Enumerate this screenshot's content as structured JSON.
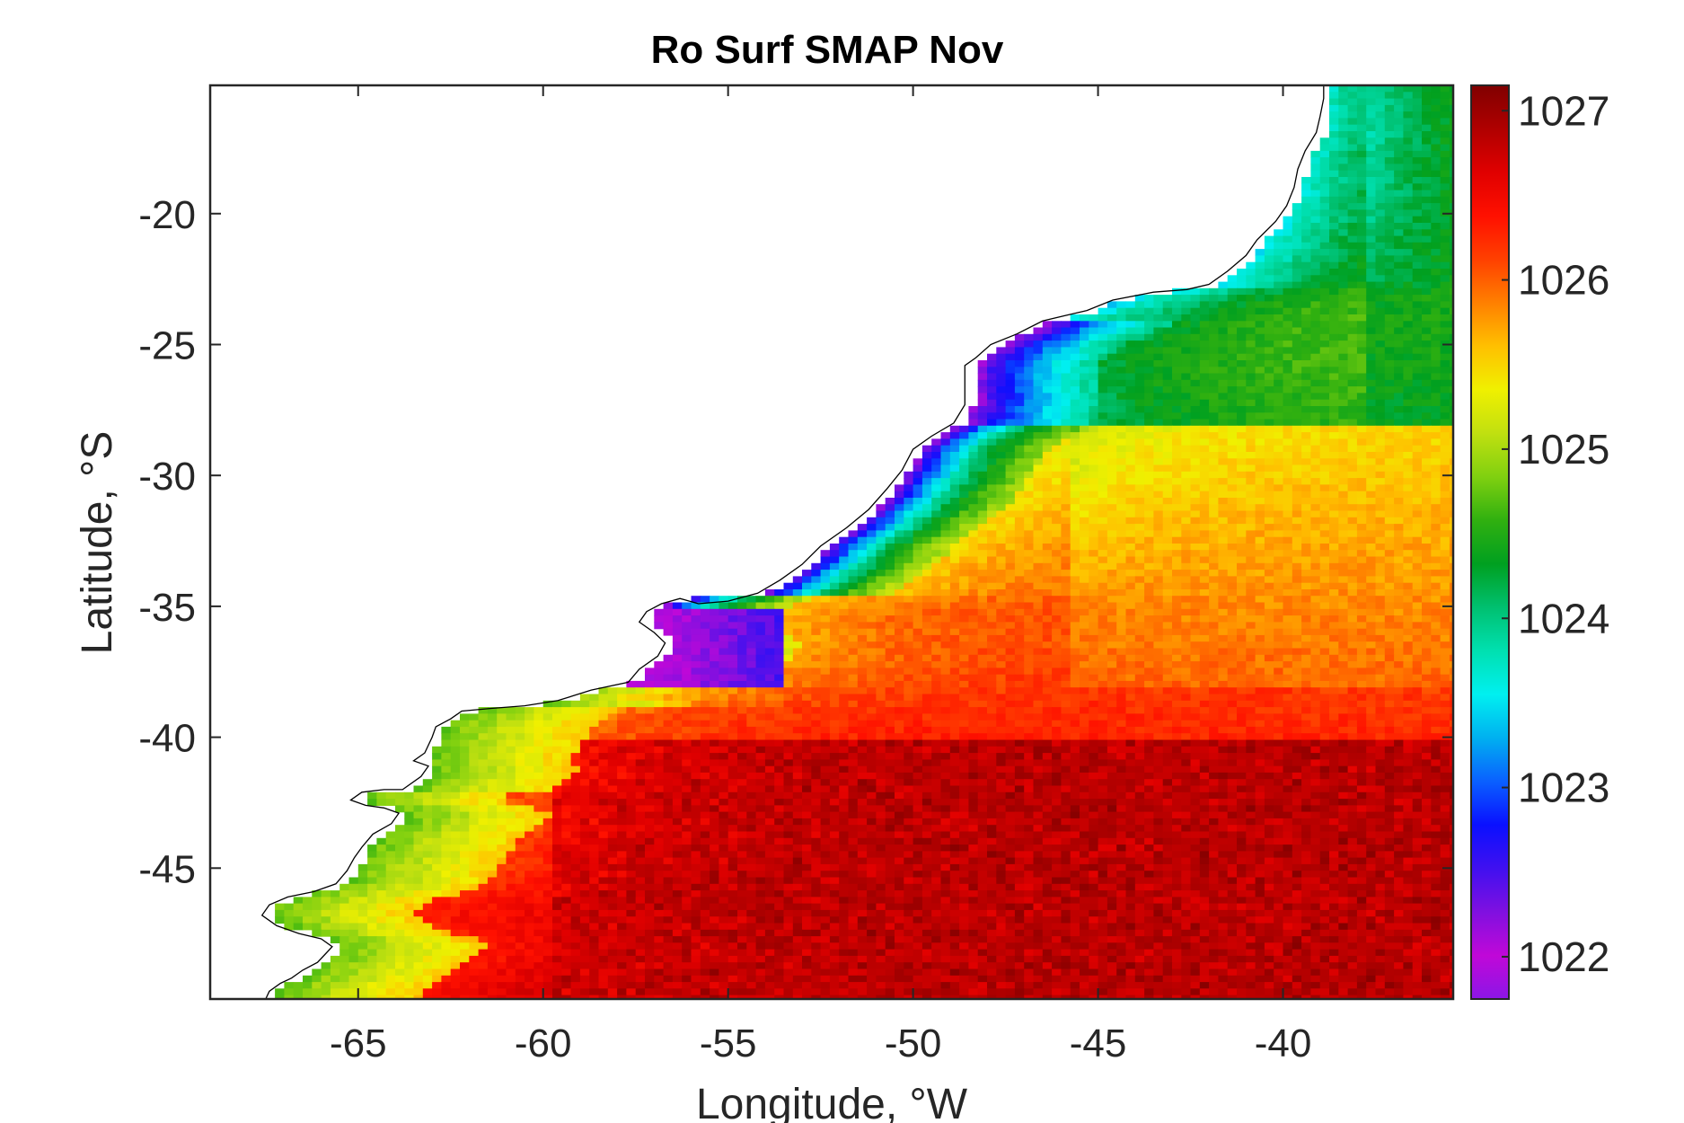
{
  "chart_data": {
    "type": "heatmap",
    "title": "Ro Surf SMAP Nov",
    "xlabel": "Longitude, °W",
    "ylabel": "Latitude, °S",
    "x_ticks": [
      -65,
      -60,
      -55,
      -50,
      -45,
      -40
    ],
    "x_tick_labels": [
      "-65",
      "-60",
      "-55",
      "-50",
      "-45",
      "-40"
    ],
    "y_ticks": [
      -20,
      -25,
      -30,
      -35,
      -40,
      -45
    ],
    "y_tick_labels": [
      "-20",
      "-25",
      "-30",
      "-35",
      "-40",
      "-45"
    ],
    "xlim": [
      -69,
      -35.4
    ],
    "ylim": [
      -50,
      -15.1
    ],
    "colorbar": {
      "range": [
        1021.75,
        1027.15
      ],
      "ticks": [
        1022,
        1023,
        1024,
        1025,
        1026,
        1027
      ],
      "tick_labels": [
        "1022",
        "1023",
        "1024",
        "1025",
        "1026",
        "1027"
      ],
      "colormap": [
        "#8c16e6",
        "#c008d8",
        "#8010e0",
        "#4010f0",
        "#0a10ff",
        "#0a60ff",
        "#00b0f0",
        "#00f0f0",
        "#00e0b0",
        "#00c070",
        "#00a020",
        "#30b010",
        "#80d010",
        "#c0e010",
        "#f0f000",
        "#ffc000",
        "#ff8000",
        "#ff4000",
        "#ff1000",
        "#e00000",
        "#b00000",
        "#800000"
      ]
    },
    "coastline": [
      [
        -67.5,
        -50
      ],
      [
        -67.4,
        -49.7
      ],
      [
        -67.1,
        -49.4
      ],
      [
        -66.8,
        -49.2
      ],
      [
        -66.5,
        -48.9
      ],
      [
        -66.1,
        -48.6
      ],
      [
        -65.9,
        -48.3
      ],
      [
        -65.7,
        -48.0
      ],
      [
        -66.0,
        -47.7
      ],
      [
        -66.6,
        -47.5
      ],
      [
        -67.2,
        -47.2
      ],
      [
        -67.6,
        -46.8
      ],
      [
        -67.4,
        -46.4
      ],
      [
        -66.9,
        -46.1
      ],
      [
        -66.2,
        -45.9
      ],
      [
        -65.6,
        -45.6
      ],
      [
        -65.3,
        -45.1
      ],
      [
        -65.1,
        -44.6
      ],
      [
        -64.9,
        -44.2
      ],
      [
        -64.6,
        -43.7
      ],
      [
        -64.1,
        -43.3
      ],
      [
        -63.9,
        -42.9
      ],
      [
        -64.3,
        -42.7
      ],
      [
        -64.8,
        -42.6
      ],
      [
        -65.2,
        -42.4
      ],
      [
        -64.9,
        -42.1
      ],
      [
        -64.3,
        -42.0
      ],
      [
        -63.8,
        -42.0
      ],
      [
        -63.3,
        -41.5
      ],
      [
        -63.1,
        -41.1
      ],
      [
        -63.5,
        -40.9
      ],
      [
        -63.2,
        -40.6
      ],
      [
        -63.0,
        -40.0
      ],
      [
        -62.9,
        -39.6
      ],
      [
        -62.5,
        -39.3
      ],
      [
        -62.2,
        -39.0
      ],
      [
        -61.4,
        -38.9
      ],
      [
        -60.5,
        -38.8
      ],
      [
        -59.6,
        -38.6
      ],
      [
        -58.7,
        -38.2
      ],
      [
        -57.7,
        -37.9
      ],
      [
        -57.4,
        -37.4
      ],
      [
        -56.9,
        -36.9
      ],
      [
        -56.7,
        -36.4
      ],
      [
        -57.0,
        -36.0
      ],
      [
        -57.4,
        -35.6
      ],
      [
        -57.2,
        -35.2
      ],
      [
        -56.8,
        -34.9
      ],
      [
        -56.3,
        -34.7
      ],
      [
        -55.8,
        -34.9
      ],
      [
        -55.0,
        -34.8
      ],
      [
        -54.2,
        -34.5
      ],
      [
        -53.6,
        -34.0
      ],
      [
        -53.0,
        -33.4
      ],
      [
        -52.5,
        -32.7
      ],
      [
        -51.8,
        -32.0
      ],
      [
        -51.2,
        -31.3
      ],
      [
        -50.7,
        -30.5
      ],
      [
        -50.3,
        -29.8
      ],
      [
        -50.0,
        -29.0
      ],
      [
        -49.5,
        -28.5
      ],
      [
        -48.9,
        -28.0
      ],
      [
        -48.6,
        -27.3
      ],
      [
        -48.6,
        -26.5
      ],
      [
        -48.6,
        -25.8
      ],
      [
        -48.3,
        -25.5
      ],
      [
        -47.9,
        -25.0
      ],
      [
        -47.2,
        -24.6
      ],
      [
        -46.5,
        -24.1
      ],
      [
        -45.9,
        -23.9
      ],
      [
        -45.3,
        -23.7
      ],
      [
        -44.6,
        -23.3
      ],
      [
        -43.5,
        -23.0
      ],
      [
        -42.6,
        -22.9
      ],
      [
        -42.0,
        -22.7
      ],
      [
        -41.5,
        -22.2
      ],
      [
        -41.0,
        -21.6
      ],
      [
        -40.7,
        -21.0
      ],
      [
        -40.2,
        -20.3
      ],
      [
        -39.9,
        -19.7
      ],
      [
        -39.7,
        -19.0
      ],
      [
        -39.6,
        -18.3
      ],
      [
        -39.4,
        -17.6
      ],
      [
        -39.1,
        -16.9
      ],
      [
        -39.0,
        -16.3
      ],
      [
        -38.9,
        -15.6
      ],
      [
        -38.9,
        -15.1
      ]
    ]
  }
}
